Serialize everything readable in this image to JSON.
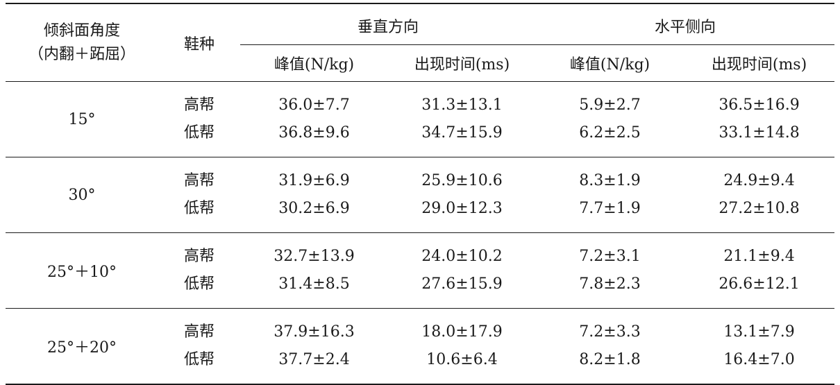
{
  "header": {
    "angle_label_line1": "倾斜面角度",
    "angle_label_line2": "（内翻＋跖屈）",
    "shoe_label": "鞋种",
    "vertical_label": "垂直方向",
    "horizontal_label": "水平侧向",
    "peak_label": "峰值(N/kg)",
    "time_label": "出现时间(ms)"
  },
  "rows": [
    {
      "angle": "15°",
      "shoes": [
        "高帮",
        "低帮"
      ],
      "v_peak": [
        "36.0±7.7",
        "36.8±9.6"
      ],
      "v_time": [
        "31.3±13.1",
        "34.7±15.9"
      ],
      "h_peak": [
        "5.9±2.7",
        "6.2±2.5"
      ],
      "h_time": [
        "36.5±16.9",
        "33.1±14.8"
      ]
    },
    {
      "angle": "30°",
      "shoes": [
        "高帮",
        "低帮"
      ],
      "v_peak": [
        "31.9±6.9",
        "30.2±6.9"
      ],
      "v_time": [
        "25.9±10.6",
        "29.0±12.3"
      ],
      "h_peak": [
        "8.3±1.9",
        "7.7±1.9"
      ],
      "h_time": [
        "24.9±9.4",
        "27.2±10.8"
      ]
    },
    {
      "angle": "25°＋10°",
      "shoes": [
        "高帮",
        "低帮"
      ],
      "v_peak": [
        "32.7±13.9",
        "31.4±8.5"
      ],
      "v_time": [
        "24.0±10.2",
        "27.6±15.9"
      ],
      "h_peak": [
        "7.2±3.1",
        "7.8±2.3"
      ],
      "h_time": [
        "21.1±9.4",
        "26.6±12.1"
      ]
    },
    {
      "angle": "25°＋20°",
      "shoes": [
        "高帮",
        "低帮"
      ],
      "v_peak": [
        "37.9±16.3",
        "37.7±2.4"
      ],
      "v_time": [
        "18.0±17.9",
        "10.6±6.4"
      ],
      "h_peak": [
        "7.2±3.3",
        "8.2±1.8"
      ],
      "h_time": [
        "13.1±7.9",
        "16.4±7.0"
      ]
    }
  ]
}
